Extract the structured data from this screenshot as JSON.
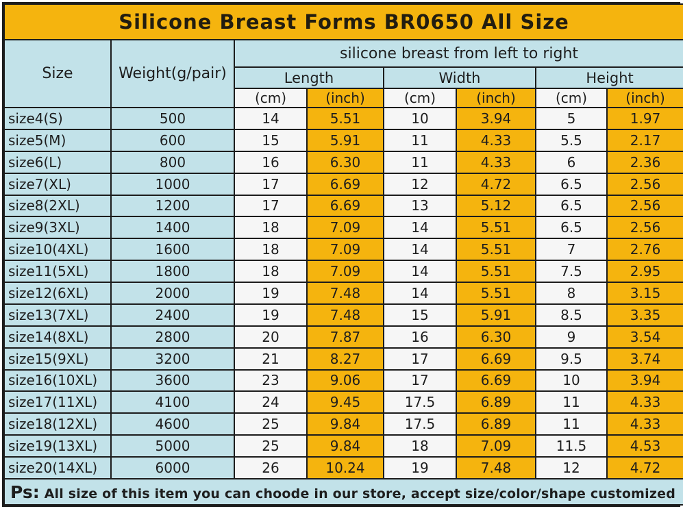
{
  "title": "Silicone Breast Forms BR0650 All Size",
  "table": {
    "span_header": "silicone breast from left to right",
    "col_size": "Size",
    "col_weight": "Weight(g/pair)",
    "col_length": "Length",
    "col_width": "Width",
    "col_height": "Height",
    "unit_cm": "(cm)",
    "unit_inch": "(inch)",
    "rows": [
      {
        "size": "size4(S)",
        "weight": "500",
        "length_cm": "14",
        "length_inch": "5.51",
        "width_cm": "10",
        "width_inch": "3.94",
        "height_cm": "5",
        "height_inch": "1.97"
      },
      {
        "size": "size5(M)",
        "weight": "600",
        "length_cm": "15",
        "length_inch": "5.91",
        "width_cm": "11",
        "width_inch": "4.33",
        "height_cm": "5.5",
        "height_inch": "2.17"
      },
      {
        "size": "size6(L)",
        "weight": "800",
        "length_cm": "16",
        "length_inch": "6.30",
        "width_cm": "11",
        "width_inch": "4.33",
        "height_cm": "6",
        "height_inch": "2.36"
      },
      {
        "size": "size7(XL)",
        "weight": "1000",
        "length_cm": "17",
        "length_inch": "6.69",
        "width_cm": "12",
        "width_inch": "4.72",
        "height_cm": "6.5",
        "height_inch": "2.56"
      },
      {
        "size": "size8(2XL)",
        "weight": "1200",
        "length_cm": "17",
        "length_inch": "6.69",
        "width_cm": "13",
        "width_inch": "5.12",
        "height_cm": "6.5",
        "height_inch": "2.56"
      },
      {
        "size": "size9(3XL)",
        "weight": "1400",
        "length_cm": "18",
        "length_inch": "7.09",
        "width_cm": "14",
        "width_inch": "5.51",
        "height_cm": "6.5",
        "height_inch": "2.56"
      },
      {
        "size": "size10(4XL)",
        "weight": "1600",
        "length_cm": "18",
        "length_inch": "7.09",
        "width_cm": "14",
        "width_inch": "5.51",
        "height_cm": "7",
        "height_inch": "2.76"
      },
      {
        "size": "size11(5XL)",
        "weight": "1800",
        "length_cm": "18",
        "length_inch": "7.09",
        "width_cm": "14",
        "width_inch": "5.51",
        "height_cm": "7.5",
        "height_inch": "2.95"
      },
      {
        "size": "size12(6XL)",
        "weight": "2000",
        "length_cm": "19",
        "length_inch": "7.48",
        "width_cm": "14",
        "width_inch": "5.51",
        "height_cm": "8",
        "height_inch": "3.15"
      },
      {
        "size": "size13(7XL)",
        "weight": "2400",
        "length_cm": "19",
        "length_inch": "7.48",
        "width_cm": "15",
        "width_inch": "5.91",
        "height_cm": "8.5",
        "height_inch": "3.35"
      },
      {
        "size": "size14(8XL)",
        "weight": "2800",
        "length_cm": "20",
        "length_inch": "7.87",
        "width_cm": "16",
        "width_inch": "6.30",
        "height_cm": "9",
        "height_inch": "3.54"
      },
      {
        "size": "size15(9XL)",
        "weight": "3200",
        "length_cm": "21",
        "length_inch": "8.27",
        "width_cm": "17",
        "width_inch": "6.69",
        "height_cm": "9.5",
        "height_inch": "3.74"
      },
      {
        "size": "size16(10XL)",
        "weight": "3600",
        "length_cm": "23",
        "length_inch": "9.06",
        "width_cm": "17",
        "width_inch": "6.69",
        "height_cm": "10",
        "height_inch": "3.94"
      },
      {
        "size": "size17(11XL)",
        "weight": "4100",
        "length_cm": "24",
        "length_inch": "9.45",
        "width_cm": "17.5",
        "width_inch": "6.89",
        "height_cm": "11",
        "height_inch": "4.33"
      },
      {
        "size": "size18(12XL)",
        "weight": "4600",
        "length_cm": "25",
        "length_inch": "9.84",
        "width_cm": "17.5",
        "width_inch": "6.89",
        "height_cm": "11",
        "height_inch": "4.33"
      },
      {
        "size": "size19(13XL)",
        "weight": "5000",
        "length_cm": "25",
        "length_inch": "9.84",
        "width_cm": "18",
        "width_inch": "7.09",
        "height_cm": "11.5",
        "height_inch": "4.53"
      },
      {
        "size": "size20(14XL)",
        "weight": "6000",
        "length_cm": "26",
        "length_inch": "10.24",
        "width_cm": "19",
        "width_inch": "7.48",
        "height_cm": "12",
        "height_inch": "4.72"
      }
    ]
  },
  "footer": {
    "prefix": "Ps:",
    "text": " All size of this item you can choode in our store, accept size/color/shape customized"
  },
  "colors": {
    "gold": "#F5B40E",
    "cyan": "#C2E2E9",
    "cell_white": "#F6F6F6",
    "border": "#1C1C1C",
    "text": "#1E1E1E"
  },
  "chart_data": {
    "type": "table",
    "title": "Silicone Breast Forms BR0650 All Size",
    "group_header": "silicone breast from left to right",
    "columns": [
      "Size",
      "Weight(g/pair)",
      "Length (cm)",
      "Length (inch)",
      "Width (cm)",
      "Width (inch)",
      "Height (cm)",
      "Height (inch)"
    ],
    "rows": [
      [
        "size4(S)",
        500,
        14,
        5.51,
        10,
        3.94,
        5,
        1.97
      ],
      [
        "size5(M)",
        600,
        15,
        5.91,
        11,
        4.33,
        5.5,
        2.17
      ],
      [
        "size6(L)",
        800,
        16,
        6.3,
        11,
        4.33,
        6,
        2.36
      ],
      [
        "size7(XL)",
        1000,
        17,
        6.69,
        12,
        4.72,
        6.5,
        2.56
      ],
      [
        "size8(2XL)",
        1200,
        17,
        6.69,
        13,
        5.12,
        6.5,
        2.56
      ],
      [
        "size9(3XL)",
        1400,
        18,
        7.09,
        14,
        5.51,
        6.5,
        2.56
      ],
      [
        "size10(4XL)",
        1600,
        18,
        7.09,
        14,
        5.51,
        7,
        2.76
      ],
      [
        "size11(5XL)",
        1800,
        18,
        7.09,
        14,
        5.51,
        7.5,
        2.95
      ],
      [
        "size12(6XL)",
        2000,
        19,
        7.48,
        14,
        5.51,
        8,
        3.15
      ],
      [
        "size13(7XL)",
        2400,
        19,
        7.48,
        15,
        5.91,
        8.5,
        3.35
      ],
      [
        "size14(8XL)",
        2800,
        20,
        7.87,
        16,
        6.3,
        9,
        3.54
      ],
      [
        "size15(9XL)",
        3200,
        21,
        8.27,
        17,
        6.69,
        9.5,
        3.74
      ],
      [
        "size16(10XL)",
        3600,
        23,
        9.06,
        17,
        6.69,
        10,
        3.94
      ],
      [
        "size17(11XL)",
        4100,
        24,
        9.45,
        17.5,
        6.89,
        11,
        4.33
      ],
      [
        "size18(12XL)",
        4600,
        25,
        9.84,
        17.5,
        6.89,
        11,
        4.33
      ],
      [
        "size19(13XL)",
        5000,
        25,
        9.84,
        18,
        7.09,
        11.5,
        4.53
      ],
      [
        "size20(14XL)",
        6000,
        26,
        10.24,
        19,
        7.48,
        12,
        4.72
      ]
    ],
    "footnote": "Ps: All size of this item you can choode in our store, accept size/color/shape customized"
  }
}
